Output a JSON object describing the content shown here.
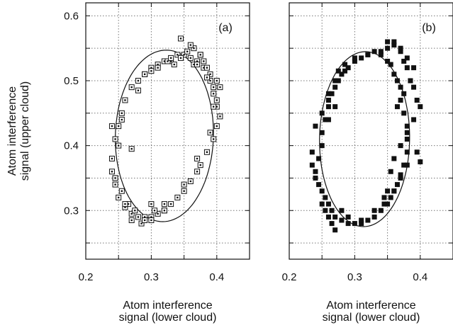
{
  "chart_data": [
    {
      "type": "scatter",
      "panel_label": "(a)",
      "marker": "open-square",
      "ylabel": [
        "Atom interference",
        "signal (upper cloud)"
      ],
      "xlabel": [
        "Atom interference",
        "signal (lower cloud)"
      ],
      "xlim": [
        0.2,
        0.45
      ],
      "ylim": [
        0.225,
        0.62
      ],
      "xticks": [
        "0.2",
        "0.3",
        "0.4"
      ],
      "yticks": [
        "0.3",
        "0.4",
        "0.5",
        "0.6"
      ],
      "grid": true,
      "fit_ellipse": {
        "cx": 0.32,
        "cy": 0.415,
        "rx": 0.078,
        "ry": 0.132,
        "tilt": 0.31
      },
      "points": {
        "x": [
          0.33,
          0.35,
          0.36,
          0.37,
          0.38,
          0.39,
          0.395,
          0.4,
          0.4,
          0.395,
          0.385,
          0.375,
          0.37,
          0.36,
          0.35,
          0.34,
          0.33,
          0.32,
          0.31,
          0.3,
          0.29,
          0.28,
          0.27,
          0.26,
          0.25,
          0.245,
          0.24,
          0.24,
          0.245,
          0.25,
          0.255,
          0.26,
          0.27,
          0.28,
          0.29,
          0.3,
          0.31,
          0.32,
          0.325,
          0.34,
          0.355,
          0.365,
          0.375,
          0.385,
          0.39,
          0.395,
          0.4,
          0.405,
          0.345,
          0.36,
          0.3,
          0.285,
          0.275,
          0.265,
          0.255,
          0.245,
          0.25,
          0.255,
          0.29,
          0.31,
          0.335,
          0.365,
          0.375,
          0.38,
          0.4,
          0.405,
          0.39,
          0.37,
          0.35,
          0.32,
          0.305,
          0.29,
          0.27,
          0.26,
          0.245,
          0.24,
          0.28,
          0.3,
          0.33,
          0.345,
          0.37,
          0.385,
          0.395,
          0.3,
          0.32,
          0.27
        ],
        "y": [
          0.53,
          0.54,
          0.535,
          0.53,
          0.52,
          0.5,
          0.48,
          0.46,
          0.43,
          0.41,
          0.39,
          0.37,
          0.36,
          0.345,
          0.33,
          0.32,
          0.31,
          0.3,
          0.295,
          0.29,
          0.29,
          0.29,
          0.295,
          0.305,
          0.32,
          0.34,
          0.36,
          0.38,
          0.41,
          0.43,
          0.45,
          0.47,
          0.49,
          0.5,
          0.51,
          0.52,
          0.525,
          0.53,
          0.53,
          0.54,
          0.545,
          0.55,
          0.54,
          0.52,
          0.51,
          0.49,
          0.47,
          0.445,
          0.565,
          0.555,
          0.285,
          0.28,
          0.3,
          0.31,
          0.33,
          0.35,
          0.4,
          0.44,
          0.51,
          0.52,
          0.525,
          0.525,
          0.54,
          0.53,
          0.5,
          0.49,
          0.42,
          0.38,
          0.34,
          0.3,
          0.3,
          0.285,
          0.285,
          0.31,
          0.35,
          0.43,
          0.485,
          0.515,
          0.535,
          0.535,
          0.525,
          0.505,
          0.46,
          0.31,
          0.31,
          0.395
        ]
      }
    },
    {
      "type": "scatter",
      "panel_label": "(b)",
      "marker": "filled-square",
      "ylabel": null,
      "xlabel": [
        "Atom interference",
        "signal (lower cloud)"
      ],
      "xlim": [
        0.2,
        0.45
      ],
      "ylim": [
        0.225,
        0.62
      ],
      "xticks": [
        "0.2",
        "0.3",
        "0.4"
      ],
      "yticks": [],
      "grid": true,
      "fit_ellipse": {
        "cx": 0.315,
        "cy": 0.41,
        "rx": 0.072,
        "ry": 0.135,
        "tilt": 0.33
      },
      "points": {
        "x": [
          0.24,
          0.245,
          0.25,
          0.25,
          0.255,
          0.26,
          0.26,
          0.265,
          0.27,
          0.275,
          0.28,
          0.285,
          0.29,
          0.3,
          0.31,
          0.32,
          0.33,
          0.34,
          0.35,
          0.355,
          0.36,
          0.365,
          0.37,
          0.37,
          0.375,
          0.38,
          0.38,
          0.38,
          0.375,
          0.37,
          0.365,
          0.36,
          0.355,
          0.35,
          0.34,
          0.33,
          0.32,
          0.31,
          0.3,
          0.29,
          0.28,
          0.27,
          0.265,
          0.26,
          0.255,
          0.25,
          0.245,
          0.24,
          0.235,
          0.235,
          0.24,
          0.25,
          0.26,
          0.27,
          0.275,
          0.285,
          0.3,
          0.32,
          0.34,
          0.35,
          0.36,
          0.37,
          0.375,
          0.38,
          0.385,
          0.39,
          0.395,
          0.4,
          0.39,
          0.38,
          0.37,
          0.36,
          0.355,
          0.35,
          0.345,
          0.27,
          0.265,
          0.26,
          0.255,
          0.25,
          0.28,
          0.29,
          0.31,
          0.33,
          0.345,
          0.36,
          0.37,
          0.38,
          0.395,
          0.4,
          0.36,
          0.35,
          0.37,
          0.38,
          0.39,
          0.385,
          0.375,
          0.365,
          0.26,
          0.27
        ],
        "y": [
          0.36,
          0.38,
          0.4,
          0.42,
          0.44,
          0.46,
          0.47,
          0.48,
          0.49,
          0.5,
          0.51,
          0.515,
          0.52,
          0.53,
          0.535,
          0.54,
          0.545,
          0.54,
          0.53,
          0.525,
          0.51,
          0.5,
          0.49,
          0.47,
          0.45,
          0.43,
          0.41,
          0.39,
          0.37,
          0.355,
          0.34,
          0.33,
          0.32,
          0.31,
          0.3,
          0.29,
          0.285,
          0.28,
          0.28,
          0.28,
          0.285,
          0.29,
          0.3,
          0.31,
          0.32,
          0.33,
          0.34,
          0.35,
          0.37,
          0.39,
          0.43,
          0.45,
          0.48,
          0.5,
          0.515,
          0.525,
          0.535,
          0.54,
          0.545,
          0.55,
          0.555,
          0.55,
          0.53,
          0.52,
          0.5,
          0.49,
          0.47,
          0.46,
          0.44,
          0.42,
          0.4,
          0.38,
          0.36,
          0.33,
          0.32,
          0.27,
          0.28,
          0.29,
          0.3,
          0.31,
          0.3,
          0.29,
          0.285,
          0.3,
          0.31,
          0.33,
          0.35,
          0.37,
          0.39,
          0.375,
          0.56,
          0.56,
          0.545,
          0.535,
          0.52,
          0.5,
          0.48,
          0.46,
          0.44,
          0.46
        ]
      }
    }
  ]
}
